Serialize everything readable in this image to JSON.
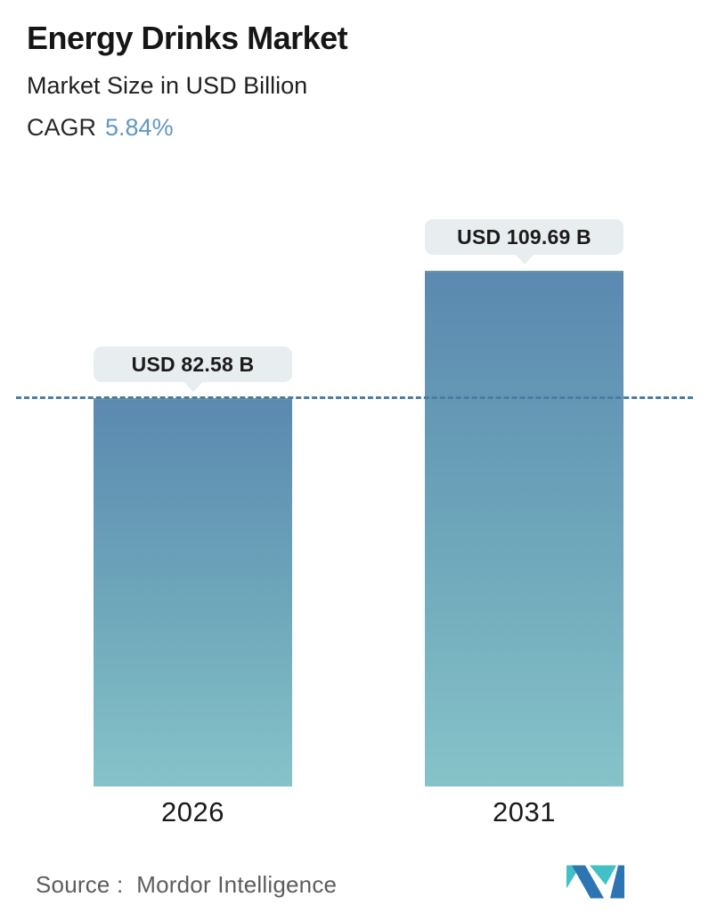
{
  "header": {
    "title": "Energy Drinks Market",
    "subtitle": "Market Size in USD Billion",
    "cagr_label": "CAGR",
    "cagr_value": "5.84%",
    "cagr_value_color": "#6496c4"
  },
  "chart_data": {
    "type": "bar",
    "categories": [
      "2026",
      "2031"
    ],
    "values": [
      82.58,
      109.69
    ],
    "series": [
      {
        "name": "Market Size",
        "values": [
          82.58,
          109.69
        ]
      }
    ],
    "value_labels": [
      "USD 82.58 B",
      "USD 109.69 B"
    ],
    "title": "Energy Drinks Market",
    "subtitle": "Market Size in USD Billion",
    "xlabel": "",
    "ylabel": "Market Size in USD Billion",
    "ylim": [
      0,
      122
    ],
    "grid": false,
    "legend": "none",
    "reference_line": {
      "style": "dashed",
      "value": 82.58,
      "color": "#4f7aa3"
    },
    "bar_gradient_top": "#5b89b0",
    "bar_gradient_mid": "#6fa8bb",
    "bar_gradient_bottom": "#86c3c9",
    "label_bubble_bg": "#e8edef"
  },
  "footer": {
    "source": "Source :  Mordor Intelligence",
    "logo_name": "mordor-intelligence-m-logo",
    "logo_teal": "#41c0c5",
    "logo_blue": "#2d74b2"
  }
}
